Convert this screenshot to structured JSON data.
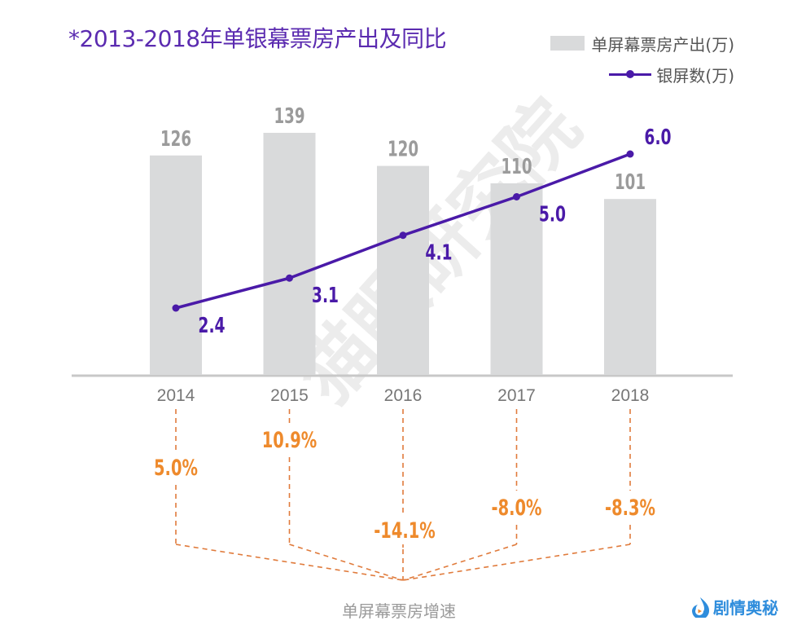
{
  "title": "*2013-2018年单银幕票房产出及同比",
  "legend": {
    "bar_label": "单屏幕票房产出(万)",
    "line_label": "银屏数(万)"
  },
  "footer_label": "单屏幕票房增速",
  "watermark": "猫眼研究院",
  "logo": {
    "text": "剧情奥秘",
    "icon": "play-drop-icon"
  },
  "colors": {
    "bar": "#d9dadb",
    "bar_label": "#9b9b9b",
    "line": "#4a1aa8",
    "title": "#5b2bb0",
    "growth": "#ee8a2c",
    "dash": "#e07b3c",
    "axis": "#c8c8c8",
    "year_label": "#777777"
  },
  "chart_data": {
    "type": "bar",
    "title": "*2013-2018年单银幕票房产出及同比",
    "categories": [
      "2014",
      "2015",
      "2016",
      "2017",
      "2018"
    ],
    "series": [
      {
        "name": "单屏幕票房产出(万)",
        "type": "bar",
        "values": [
          126,
          139,
          120,
          110,
          101
        ],
        "labels": [
          "126",
          "139",
          "120",
          "110",
          "101"
        ]
      },
      {
        "name": "银屏数(万)",
        "type": "line",
        "values": [
          2.4,
          3.1,
          4.1,
          5.0,
          6.0
        ],
        "labels": [
          "2.4",
          "3.1",
          "4.1",
          "5.0",
          "6.0"
        ]
      },
      {
        "name": "单屏幕票房增速",
        "type": "annotation",
        "values": [
          5.0,
          10.9,
          -14.1,
          -8.0,
          -8.3
        ],
        "labels": [
          "5.0%",
          "10.9%",
          "-14.1%",
          "-8.0%",
          "-8.3%"
        ]
      }
    ],
    "xlabel": "",
    "ylabel": "",
    "grid": false,
    "legend_position": "top-right"
  }
}
